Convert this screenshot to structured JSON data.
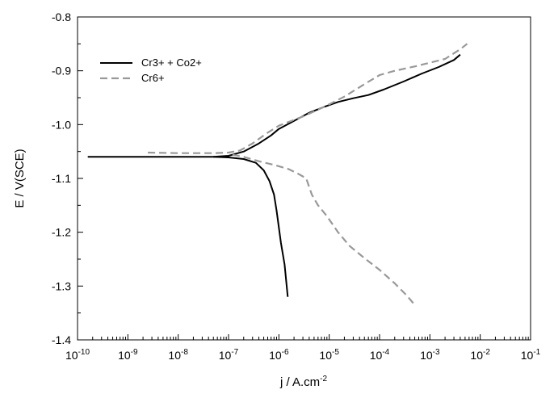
{
  "chart_data": {
    "type": "line",
    "xlabel": "j / A.cm",
    "xlabel_sup": "-2",
    "ylabel": "E / V(SCE)",
    "x_scale": "log",
    "xlim": [
      1e-10,
      0.1
    ],
    "ylim": [
      -1.4,
      -0.8
    ],
    "x_ticks": [
      {
        "value": 1e-10,
        "base": "10",
        "exp": "-10"
      },
      {
        "value": 1e-09,
        "base": "10",
        "exp": "-9"
      },
      {
        "value": 1e-08,
        "base": "10",
        "exp": "-8"
      },
      {
        "value": 1e-07,
        "base": "10",
        "exp": "-7"
      },
      {
        "value": 1e-06,
        "base": "10",
        "exp": "-6"
      },
      {
        "value": 1e-05,
        "base": "10",
        "exp": "-5"
      },
      {
        "value": 0.0001,
        "base": "10",
        "exp": "-4"
      },
      {
        "value": 0.001,
        "base": "10",
        "exp": "-3"
      },
      {
        "value": 0.01,
        "base": "10",
        "exp": "-2"
      },
      {
        "value": 0.1,
        "base": "10",
        "exp": "-1"
      }
    ],
    "y_ticks": [
      {
        "value": -0.8,
        "label": "-0.8"
      },
      {
        "value": -0.9,
        "label": "-0.9"
      },
      {
        "value": -1.0,
        "label": "-1.0"
      },
      {
        "value": -1.1,
        "label": "-1.1"
      },
      {
        "value": -1.2,
        "label": "-1.2"
      },
      {
        "value": -1.3,
        "label": "-1.3"
      },
      {
        "value": -1.4,
        "label": "-1.4"
      }
    ],
    "grid": false,
    "legend_position": "top-left",
    "series": [
      {
        "name": "Cr3+ + Co2+",
        "color": "#000000",
        "dash": "solid",
        "branches": [
          {
            "points": [
              [
                1.6e-10,
                -1.06
              ],
              [
                1e-09,
                -1.06
              ],
              [
                1e-08,
                -1.06
              ],
              [
                5e-08,
                -1.06
              ],
              [
                1e-07,
                -1.058
              ],
              [
                2e-07,
                -1.05
              ],
              [
                4e-07,
                -1.035
              ],
              [
                7e-07,
                -1.02
              ],
              [
                1e-06,
                -1.008
              ],
              [
                2e-06,
                -0.993
              ],
              [
                4e-06,
                -0.978
              ],
              [
                8e-06,
                -0.967
              ],
              [
                1.5e-05,
                -0.958
              ],
              [
                3e-05,
                -0.951
              ],
              [
                6e-05,
                -0.945
              ],
              [
                0.00012,
                -0.935
              ],
              [
                0.0003,
                -0.92
              ],
              [
                0.0007,
                -0.905
              ],
              [
                0.0015,
                -0.893
              ],
              [
                0.003,
                -0.88
              ],
              [
                0.004,
                -0.87
              ]
            ]
          },
          {
            "points": [
              [
                5e-08,
                -1.06
              ],
              [
                1e-07,
                -1.061
              ],
              [
                2e-07,
                -1.064
              ],
              [
                3.5e-07,
                -1.071
              ],
              [
                5e-07,
                -1.085
              ],
              [
                6.5e-07,
                -1.105
              ],
              [
                8e-07,
                -1.13
              ],
              [
                9e-07,
                -1.16
              ],
              [
                1.1e-06,
                -1.22
              ],
              [
                1.3e-06,
                -1.26
              ],
              [
                1.5e-06,
                -1.32
              ]
            ]
          }
        ]
      },
      {
        "name": "Cr6+",
        "color": "#999999",
        "dash": "dashed",
        "branches": [
          {
            "points": [
              [
                2.5e-09,
                -1.052
              ],
              [
                1e-08,
                -1.053
              ],
              [
                5e-08,
                -1.053
              ],
              [
                1e-07,
                -1.052
              ],
              [
                1.7e-07,
                -1.048
              ],
              [
                3e-07,
                -1.035
              ],
              [
                6e-07,
                -1.015
              ],
              [
                1e-06,
                -1.002
              ],
              [
                3e-06,
                -0.985
              ],
              [
                8e-06,
                -0.967
              ],
              [
                2e-05,
                -0.948
              ],
              [
                5e-05,
                -0.925
              ],
              [
                0.0001,
                -0.908
              ],
              [
                0.0002,
                -0.9
              ],
              [
                0.0005,
                -0.892
              ],
              [
                0.001,
                -0.885
              ],
              [
                0.002,
                -0.878
              ],
              [
                0.004,
                -0.86
              ],
              [
                0.0055,
                -0.85
              ]
            ]
          },
          {
            "points": [
              [
                1.2e-07,
                -1.056
              ],
              [
                2e-07,
                -1.06
              ],
              [
                4e-07,
                -1.068
              ],
              [
                8e-07,
                -1.075
              ],
              [
                1.5e-06,
                -1.082
              ],
              [
                2.5e-06,
                -1.092
              ],
              [
                3.5e-06,
                -1.1
              ],
              [
                4.5e-06,
                -1.13
              ],
              [
                6e-06,
                -1.15
              ],
              [
                9e-06,
                -1.17
              ],
              [
                1.5e-05,
                -1.2
              ],
              [
                2.5e-05,
                -1.225
              ],
              [
                5e-05,
                -1.248
              ],
              [
                0.0001,
                -1.27
              ],
              [
                0.0002,
                -1.295
              ],
              [
                0.00035,
                -1.318
              ],
              [
                0.0005,
                -1.335
              ]
            ]
          }
        ]
      }
    ]
  }
}
